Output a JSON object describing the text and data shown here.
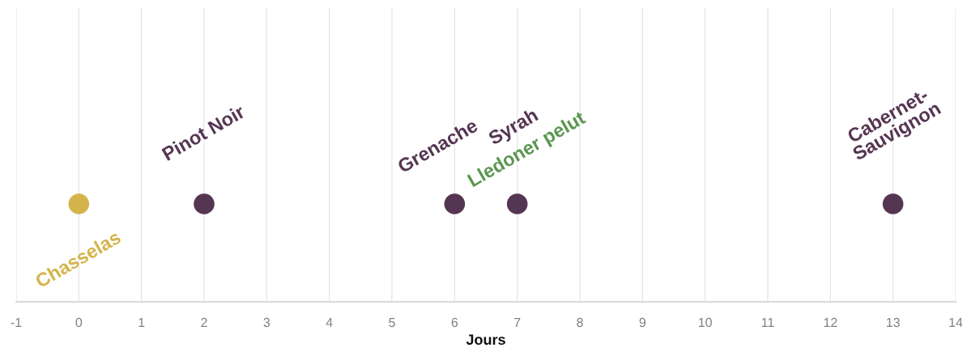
{
  "chart_data": {
    "type": "scatter",
    "orientation": "horizontal",
    "xlabel": "Jours",
    "categories": [
      null
    ],
    "xlim": [
      -1,
      14
    ],
    "xticks": [
      -1,
      0,
      1,
      2,
      3,
      4,
      5,
      6,
      7,
      8,
      9,
      10,
      11,
      12,
      13,
      14
    ],
    "grid": "x",
    "tick_labels": "x",
    "marker": "circle",
    "legend": false,
    "series": [
      {
        "name": "Chasselas",
        "color": "#d4b44a",
        "values": [
          0
        ]
      },
      {
        "name": "Pinot Noir",
        "color": "#553652",
        "values": [
          2
        ]
      },
      {
        "name": "Grenache",
        "color": "#553652",
        "values": [
          6
        ]
      },
      {
        "name": "Syrah",
        "color": "#553652",
        "values": [
          7
        ]
      },
      {
        "name": "Lledoner pelut",
        "color": "#5b9650",
        "values": [
          null
        ]
      },
      {
        "name": "Cabernet-Sauvignon",
        "color": "#553652",
        "values": [
          13
        ]
      }
    ]
  }
}
